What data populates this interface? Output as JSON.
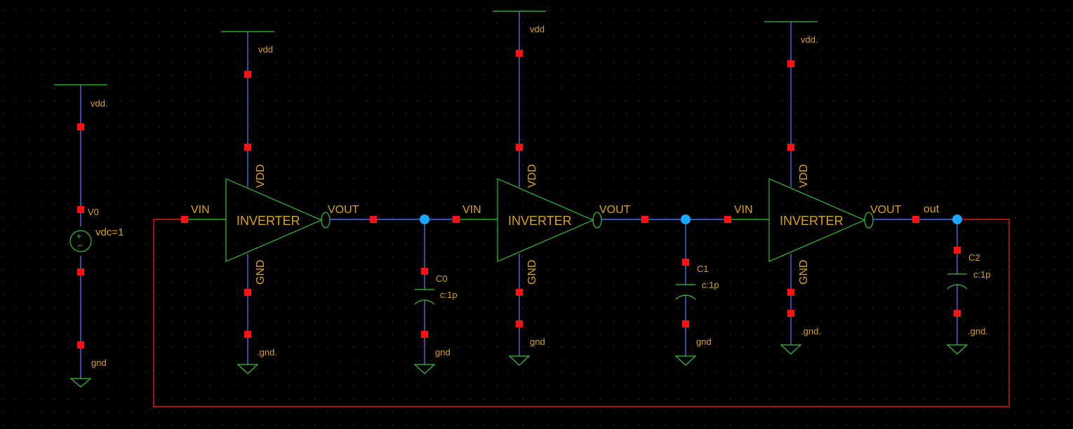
{
  "colors": {
    "background": "#000000",
    "grid_dot": "#5a5a5a",
    "wire": "#5a82ff",
    "symbol": "#33c233",
    "pin": "#ff1111",
    "label": "#d8a21a",
    "loop_wire": "#dd1a1a",
    "junction": "#19a8ff"
  },
  "source": {
    "supply_label": "vdd.",
    "instance_name": "V0",
    "param": "vdc=1",
    "plus_sign": "+",
    "minus_sign": "−",
    "ground_label": "gnd"
  },
  "inverters": [
    {
      "name": "INVERTER",
      "vdd_net": "vdd",
      "gnd_net": ".gnd.",
      "vdd_pin": "VDD",
      "gnd_pin": "GND",
      "in_pin": "VIN",
      "out_pin": "VOUT"
    },
    {
      "name": "INVERTER",
      "vdd_net": "vdd",
      "gnd_net": "gnd",
      "vdd_pin": "VDD",
      "gnd_pin": "GND",
      "in_pin": "VIN",
      "out_pin": "VOUT"
    },
    {
      "name": "INVERTER",
      "vdd_net": "vdd.",
      "gnd_net": ".gnd.",
      "vdd_pin": "VDD",
      "gnd_pin": "GND",
      "in_pin": "VIN",
      "out_pin": "VOUT"
    }
  ],
  "capacitors": [
    {
      "name": "C0",
      "value": "c:1p",
      "gnd_net": "gnd"
    },
    {
      "name": "C1",
      "value": "c:1p",
      "gnd_net": "gnd"
    },
    {
      "name": "C2",
      "value": "c:1p",
      "gnd_net": ".gnd."
    }
  ],
  "output_net": "out"
}
